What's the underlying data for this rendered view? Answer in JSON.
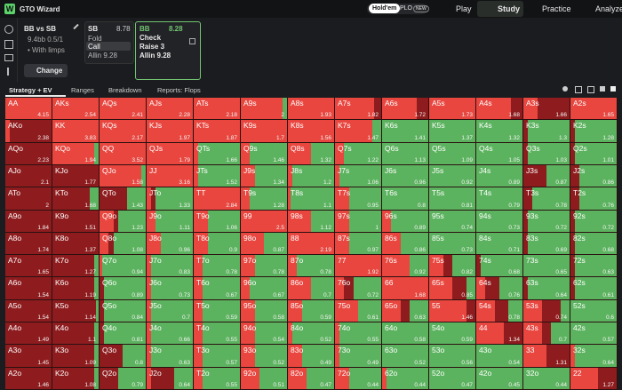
{
  "nav": {
    "logo": "GTO Wizard",
    "modes": [
      "Hold'em",
      "PLO"
    ],
    "badge": "NEW",
    "tabs": [
      "Play",
      "Study",
      "Practice",
      "Analyze"
    ]
  },
  "spot": {
    "title": "BB vs SB",
    "stack": "9.4bb 0.5/1",
    "note": "• With limps",
    "button": "Change"
  },
  "players": [
    {
      "name": "SB",
      "ev": "8.78",
      "actions": [
        "Fold",
        "Call",
        "Allin 9.28"
      ]
    },
    {
      "name": "BB",
      "ev": "8.28",
      "actions": [
        "Check",
        "Raise 3",
        "Allin 9.28"
      ]
    }
  ],
  "toolbar": [
    "Strategy + EV",
    "Ranges",
    "Breakdown",
    "Reports: Flops"
  ],
  "grid": {
    "rows": [
      [
        [
          "AA",
          "4.15",
          1,
          0
        ],
        [
          "AKs",
          "2.54",
          1,
          0
        ],
        [
          "AQs",
          "2.41",
          1,
          0
        ],
        [
          "AJs",
          "2.28",
          1,
          0
        ],
        [
          "ATs",
          "2.18",
          1,
          0
        ],
        [
          "A9s",
          "2",
          0.9,
          0
        ],
        [
          "A8s",
          "1.93",
          1,
          0
        ],
        [
          "A7s",
          "1.82",
          0.85,
          0.15
        ],
        [
          "A6s",
          "1.72",
          0.75,
          0.25
        ],
        [
          "A5s",
          "1.73",
          1,
          0
        ],
        [
          "A4s",
          "1.68",
          0.75,
          0.25
        ],
        [
          "A3s",
          "1.66",
          0.3,
          0.7
        ],
        [
          "A2s",
          "1.65",
          1,
          0
        ]
      ],
      [
        [
          "AKo",
          "2.38",
          0.1,
          0.9
        ],
        [
          "KK",
          "3.83",
          1,
          0
        ],
        [
          "KQs",
          "2.17",
          1,
          0
        ],
        [
          "KJs",
          "1.97",
          1,
          0
        ],
        [
          "KTs",
          "1.87",
          1,
          0
        ],
        [
          "K9s",
          "1.7",
          1,
          0
        ],
        [
          "K8s",
          "1.56",
          1,
          0
        ],
        [
          "K7s",
          "1.47",
          0.8,
          0
        ],
        [
          "K6s",
          "1.41",
          0,
          0
        ],
        [
          "K5s",
          "1.37",
          0,
          0
        ],
        [
          "K4s",
          "1.32",
          0,
          0
        ],
        [
          "K3s",
          "1.3",
          0,
          0.1
        ],
        [
          "K2s",
          "1.28",
          0,
          0.1
        ]
      ],
      [
        [
          "AQo",
          "2.23",
          0,
          1
        ],
        [
          "KQo",
          "1.94",
          0.9,
          0
        ],
        [
          "QQ",
          "3.52",
          1,
          0
        ],
        [
          "QJs",
          "1.79",
          1,
          0
        ],
        [
          "QTs",
          "1.66",
          0.1,
          0
        ],
        [
          "Q9s",
          "1.46",
          0.2,
          0
        ],
        [
          "Q8s",
          "1.32",
          0.5,
          0
        ],
        [
          "Q7s",
          "1.22",
          0.2,
          0
        ],
        [
          "Q6s",
          "1.13",
          0,
          0
        ],
        [
          "Q5s",
          "1.09",
          0,
          0
        ],
        [
          "Q4s",
          "1.05",
          0,
          0
        ],
        [
          "Q3s",
          "1.03",
          0,
          0.1
        ],
        [
          "Q2s",
          "1.01",
          0,
          0.1
        ]
      ],
      [
        [
          "AJo",
          "2.1",
          0,
          1
        ],
        [
          "KJo",
          "1.77",
          0,
          1
        ],
        [
          "QJo",
          "1.58",
          0.9,
          0
        ],
        [
          "JJ",
          "3.16",
          1,
          0
        ],
        [
          "JTs",
          "1.52",
          0.1,
          0
        ],
        [
          "J9s",
          "1.34",
          0.3,
          0
        ],
        [
          "J8s",
          "1.2",
          0.1,
          0
        ],
        [
          "J7s",
          "1.06",
          0.1,
          0
        ],
        [
          "J6s",
          "0.96",
          0,
          0
        ],
        [
          "J5s",
          "0.92",
          0,
          0
        ],
        [
          "J4s",
          "0.89",
          0,
          0
        ],
        [
          "J3s",
          "0.87",
          0,
          0.5
        ],
        [
          "J2s",
          "0.86",
          0,
          0.2
        ]
      ],
      [
        [
          "ATo",
          "2",
          0,
          1
        ],
        [
          "KTo",
          "1.68",
          0,
          0.8
        ],
        [
          "QTo",
          "1.43",
          0,
          0.6
        ],
        [
          "JTo",
          "1.33",
          0.1,
          0.1
        ],
        [
          "TT",
          "2.84",
          1,
          0
        ],
        [
          "T9s",
          "1.28",
          0.2,
          0
        ],
        [
          "T8s",
          "1.1",
          0.05,
          0
        ],
        [
          "T7s",
          "0.95",
          0.3,
          0
        ],
        [
          "T6s",
          "0.8",
          0,
          0
        ],
        [
          "T5s",
          "0.81",
          0,
          0
        ],
        [
          "T4s",
          "0.79",
          0,
          0
        ],
        [
          "T3s",
          "0.78",
          0,
          0.2
        ],
        [
          "T2s",
          "0.76",
          0,
          0.2
        ]
      ],
      [
        [
          "A9o",
          "1.84",
          0,
          1
        ],
        [
          "K9o",
          "1.51",
          0,
          1
        ],
        [
          "Q9o",
          "1.23",
          0.3,
          0.1
        ],
        [
          "J9o",
          "1.11",
          0.2,
          0
        ],
        [
          "T9o",
          "1.06",
          0.3,
          0
        ],
        [
          "99",
          "2.5",
          1,
          0
        ],
        [
          "98s",
          "1.12",
          0.5,
          0
        ],
        [
          "97s",
          "1",
          0.3,
          0
        ],
        [
          "96s",
          "0.89",
          0.2,
          0
        ],
        [
          "95s",
          "0.74",
          0,
          0
        ],
        [
          "94s",
          "0.73",
          0,
          0
        ],
        [
          "93s",
          "0.72",
          0,
          0.1
        ],
        [
          "92s",
          "0.72",
          0,
          0.1
        ]
      ],
      [
        [
          "A8o",
          "1.74",
          0,
          1
        ],
        [
          "K8o",
          "1.37",
          0,
          1
        ],
        [
          "Q8o",
          "1.08",
          0.2,
          0.1
        ],
        [
          "J8o",
          "0.96",
          0.3,
          0
        ],
        [
          "T8o",
          "0.9",
          0.3,
          0
        ],
        [
          "98o",
          "0.87",
          0.5,
          0
        ],
        [
          "88",
          "2.19",
          1,
          0
        ],
        [
          "87s",
          "0.97",
          0.3,
          0
        ],
        [
          "86s",
          "0.86",
          0.4,
          0
        ],
        [
          "85s",
          "0.73",
          0,
          0
        ],
        [
          "84s",
          "0.71",
          0,
          0
        ],
        [
          "83s",
          "0.69",
          0,
          0.1
        ],
        [
          "82s",
          "0.68",
          0,
          0.1
        ]
      ],
      [
        [
          "A7o",
          "1.65",
          0,
          1
        ],
        [
          "K7o",
          "1.27",
          0,
          0.9
        ],
        [
          "Q7o",
          "0.94",
          0.05,
          0
        ],
        [
          "J7o",
          "0.83",
          0.1,
          0
        ],
        [
          "T7o",
          "0.78",
          0.2,
          0
        ],
        [
          "97o",
          "0.78",
          0.3,
          0
        ],
        [
          "87o",
          "0.78",
          0.2,
          0
        ],
        [
          "77",
          "1.92",
          1,
          0
        ],
        [
          "76s",
          "0.92",
          0.6,
          0
        ],
        [
          "75s",
          "0.82",
          0.3,
          0.2
        ],
        [
          "74s",
          "0.68",
          0,
          0.1
        ],
        [
          "73s",
          "0.65",
          0,
          0
        ],
        [
          "72s",
          "0.63",
          0,
          0.1
        ]
      ],
      [
        [
          "A6o",
          "1.54",
          0,
          1
        ],
        [
          "K6o",
          "1.19",
          0,
          0.9
        ],
        [
          "Q6o",
          "0.89",
          0,
          0.1
        ],
        [
          "J6o",
          "0.73",
          0.1,
          0
        ],
        [
          "T6o",
          "0.67",
          0.2,
          0
        ],
        [
          "96o",
          "0.67",
          0.2,
          0
        ],
        [
          "86o",
          "0.7",
          0.5,
          0
        ],
        [
          "76o",
          "0.72",
          0.2,
          0.2
        ],
        [
          "66",
          "1.68",
          1,
          0
        ],
        [
          "65s",
          "0.85",
          0.5,
          0.3
        ],
        [
          "64s",
          "0.76",
          0.2,
          0.3
        ],
        [
          "63s",
          "0.64",
          0,
          0.1
        ],
        [
          "62s",
          "0.61",
          0,
          0.1
        ]
      ],
      [
        [
          "A5o",
          "1.54",
          0,
          1
        ],
        [
          "K5o",
          "1.14",
          0,
          0.95
        ],
        [
          "Q5o",
          "0.84",
          0,
          0.1
        ],
        [
          "J5o",
          "0.7",
          0.1,
          0
        ],
        [
          "T5o",
          "0.59",
          0.2,
          0
        ],
        [
          "95o",
          "0.58",
          0.3,
          0
        ],
        [
          "85o",
          "0.59",
          0.3,
          0
        ],
        [
          "75o",
          "0.61",
          0.5,
          0
        ],
        [
          "65o",
          "0.63",
          0.4,
          0.2
        ],
        [
          "55",
          "1.46",
          0.8,
          0.2
        ],
        [
          "54s",
          "0.78",
          0.4,
          0.3
        ],
        [
          "53s",
          "0.74",
          0.4,
          0.4
        ],
        [
          "52s",
          "0.6",
          0,
          0
        ]
      ],
      [
        [
          "A4o",
          "1.49",
          0,
          1
        ],
        [
          "K4o",
          "1.1",
          0,
          0.9
        ],
        [
          "Q4o",
          "0.81",
          0,
          0.1
        ],
        [
          "J4o",
          "0.66",
          0.1,
          0
        ],
        [
          "T4o",
          "0.55",
          0.2,
          0
        ],
        [
          "94o",
          "0.54",
          0.3,
          0
        ],
        [
          "84o",
          "0.52",
          0.1,
          0
        ],
        [
          "74o",
          "0.55",
          0.1,
          0
        ],
        [
          "64o",
          "0.58",
          0,
          0
        ],
        [
          "54o",
          "0.59",
          0,
          0
        ],
        [
          "44",
          "1.34",
          0.6,
          0.4
        ],
        [
          "43s",
          "0.7",
          0.4,
          0.2
        ],
        [
          "42s",
          "0.57",
          0,
          0
        ]
      ],
      [
        [
          "A3o",
          "1.45",
          0,
          1
        ],
        [
          "K3o",
          "1.09",
          0,
          0.9
        ],
        [
          "Q3o",
          "0.8",
          0,
          0.5
        ],
        [
          "J3o",
          "0.63",
          0.1,
          0
        ],
        [
          "T3o",
          "0.57",
          0.2,
          0
        ],
        [
          "93o",
          "0.52",
          0.3,
          0
        ],
        [
          "83o",
          "0.49",
          0.3,
          0
        ],
        [
          "73o",
          "0.49",
          0.1,
          0
        ],
        [
          "63o",
          "0.52",
          0,
          0
        ],
        [
          "53o",
          "0.56",
          0,
          0
        ],
        [
          "43o",
          "0.54",
          0,
          0
        ],
        [
          "33",
          "1.31",
          0.5,
          0.5
        ],
        [
          "32s",
          "0.64",
          0.1,
          0
        ]
      ],
      [
        [
          "A2o",
          "1.46",
          0,
          1
        ],
        [
          "K2o",
          "1.08",
          0,
          0.9
        ],
        [
          "Q2o",
          "0.79",
          0,
          0.4
        ],
        [
          "J2o",
          "0.64",
          0.1,
          0.5
        ],
        [
          "T2o",
          "0.55",
          0.2,
          0
        ],
        [
          "92o",
          "0.51",
          0.4,
          0
        ],
        [
          "82o",
          "0.47",
          0.4,
          0
        ],
        [
          "72o",
          "0.44",
          0.3,
          0
        ],
        [
          "62o",
          "0.44",
          0.1,
          0
        ],
        [
          "52o",
          "0.47",
          0,
          0
        ],
        [
          "42o",
          "0.45",
          0,
          0
        ],
        [
          "32o",
          "0.44",
          0,
          0
        ],
        [
          "22",
          "1.27",
          0.6,
          0.4
        ]
      ]
    ]
  }
}
